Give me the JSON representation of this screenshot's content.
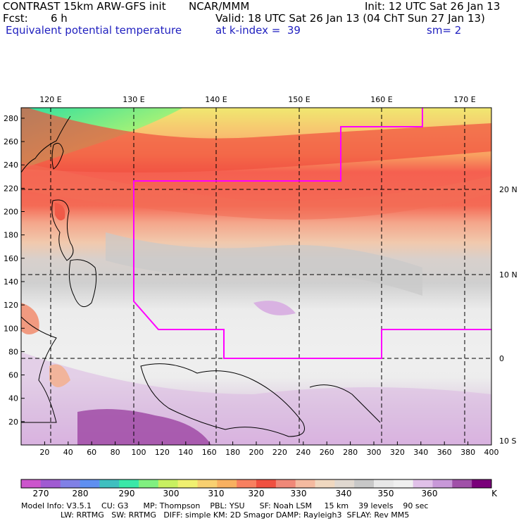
{
  "header": {
    "title": "CONTRAST 15km ARW-GFS init",
    "org": "NCAR/MMM",
    "init": "Init: 12 UTC Sat 26 Jan 13",
    "fcst_label": "Fcst:",
    "fcst_value": "6 h",
    "valid": "Valid: 18 UTC Sat 26 Jan 13 (04 ChT Sun 27 Jan 13)",
    "field": "Equivalent potential temperature",
    "level": "at k-index =  39",
    "smooth": "sm= 2"
  },
  "map": {
    "lon_labels": [
      "120 E",
      "130 E",
      "140 E",
      "150 E",
      "160 E",
      "170 E"
    ],
    "lat_labels": [
      "20 N",
      "10 N",
      "0",
      "10 S"
    ],
    "x_ticks": [
      "20",
      "40",
      "60",
      "80",
      "100",
      "120",
      "140",
      "160",
      "180",
      "200",
      "220",
      "240",
      "260",
      "280",
      "300",
      "320",
      "340",
      "360",
      "380",
      "400"
    ],
    "y_ticks": [
      "280",
      "260",
      "240",
      "220",
      "200",
      "180",
      "160",
      "140",
      "120",
      "100",
      "80",
      "60",
      "40",
      "20"
    ],
    "box_color": "#ff00ff"
  },
  "colorbar": {
    "labels": [
      "270",
      "280",
      "290",
      "300",
      "310",
      "320",
      "330",
      "340",
      "350",
      "360"
    ],
    "unit": "K",
    "colors": [
      "#cc55cc",
      "#a05ad2",
      "#8080e6",
      "#5f8ff0",
      "#3fbfbf",
      "#3ae8a8",
      "#80f080",
      "#c8f060",
      "#f0f070",
      "#f8d070",
      "#f8b060",
      "#f88060",
      "#f05040",
      "#f08878",
      "#f4baa0",
      "#f0d8c0",
      "#e0d8d0",
      "#c8c8c8",
      "#e8e8e8",
      "#f0f0f0",
      "#e0c0e8",
      "#c898d8",
      "#a050a8",
      "#7a007a"
    ]
  },
  "footer": {
    "line1": "Model Info: V3.5.1    CU: G3      MP: Thompson    PBL: YSU      SF: Noah LSM     15 km    39 levels    90 sec",
    "line2": "                LW: RRTMG   SW: RRTMG   DIFF: simple KM: 2D Smagor DAMP: Rayleigh3  SFLAY: Rev MM5"
  }
}
